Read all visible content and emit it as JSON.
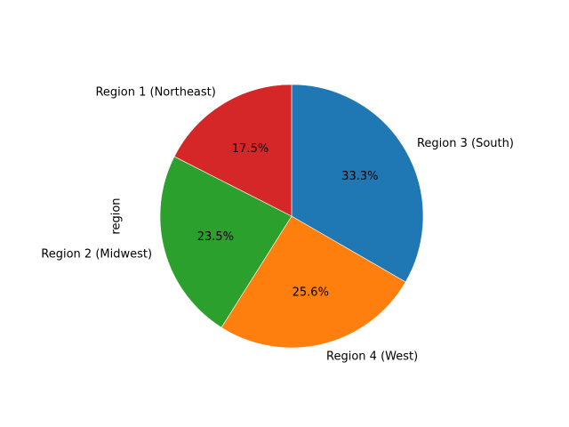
{
  "chart_data": {
    "type": "pie",
    "title": "",
    "ylabel": "region",
    "start_angle_deg": 90,
    "direction": "clockwise",
    "categories": [
      "Region 3 (South)",
      "Region 4 (West)",
      "Region 2 (Midwest)",
      "Region 1 (Northeast)"
    ],
    "values": [
      33.3,
      25.6,
      23.5,
      17.5
    ],
    "percent_labels": [
      "33.3%",
      "25.6%",
      "23.5%",
      "17.5%"
    ],
    "colors": [
      "#1f77b4",
      "#ff7f0e",
      "#2ca02c",
      "#d62728"
    ]
  }
}
